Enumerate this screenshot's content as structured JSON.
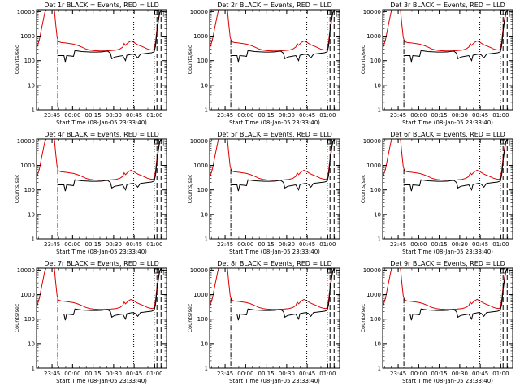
{
  "figure": {
    "black_color": "#000000",
    "red_color": "#e00000",
    "ticks_x": [
      "23:45",
      "00:00",
      "00:15",
      "00:30",
      "00:45",
      "01:00"
    ],
    "ticks_y": [
      "1",
      "10",
      "100",
      "1000",
      "10000"
    ],
    "corner_label": "|"
  },
  "chart_data": [
    {
      "type": "line",
      "title": "Det 1r BLACK = Events, RED = LLD",
      "xlabel": "Start Time (08-Jan-05 23:33:40)",
      "ylabel": "Counts/sec",
      "scale_y": "log",
      "ylim": [
        1,
        12000
      ],
      "xlim_min": [
        0,
        95
      ],
      "series": [
        {
          "name": "Events",
          "color": "#000000"
        },
        {
          "name": "LLD",
          "color": "#e00000"
        }
      ],
      "annotations": {
        "dashdot_min": 15.5,
        "dotted_min": [
          71,
          86
        ],
        "dashed_min": [
          88,
          91
        ]
      }
    },
    {
      "type": "line",
      "title": "Det 2r BLACK = Events, RED = LLD",
      "xlabel": "Start Time (08-Jan-05 23:33:40)",
      "ylabel": "Counts/sec",
      "scale_y": "log",
      "ylim": [
        1,
        12000
      ],
      "xlim_min": [
        0,
        95
      ],
      "series": [
        {
          "name": "Events",
          "color": "#000000"
        },
        {
          "name": "LLD",
          "color": "#e00000"
        }
      ],
      "annotations": {
        "dashdot_min": 15.5,
        "dotted_min": [
          71,
          86
        ],
        "dashed_min": [
          88,
          91
        ]
      }
    },
    {
      "type": "line",
      "title": "Det 3r BLACK = Events, RED = LLD",
      "xlabel": "Start Time (08-Jan-05 23:33:40)",
      "ylabel": "Counts/sec",
      "scale_y": "log",
      "ylim": [
        1,
        12000
      ],
      "xlim_min": [
        0,
        95
      ],
      "series": [
        {
          "name": "Events",
          "color": "#000000"
        },
        {
          "name": "LLD",
          "color": "#e00000"
        }
      ],
      "annotations": {
        "dashdot_min": 15.5,
        "dotted_min": [
          71,
          86
        ],
        "dashed_min": [
          88,
          91
        ]
      }
    },
    {
      "type": "line",
      "title": "Det 4r BLACK = Events, RED = LLD",
      "xlabel": "Start Time (08-Jan-05 23:33:40)",
      "ylabel": "Counts/sec",
      "scale_y": "log",
      "ylim": [
        1,
        12000
      ],
      "xlim_min": [
        0,
        95
      ],
      "series": [
        {
          "name": "Events",
          "color": "#000000"
        },
        {
          "name": "LLD",
          "color": "#e00000"
        }
      ],
      "annotations": {
        "dashdot_min": 15.5,
        "dotted_min": [
          71,
          86
        ],
        "dashed_min": [
          88,
          91
        ]
      }
    },
    {
      "type": "line",
      "title": "Det 5r BLACK = Events, RED = LLD",
      "xlabel": "Start Time (08-Jan-05 23:33:40)",
      "ylabel": "Counts/sec",
      "scale_y": "log",
      "ylim": [
        1,
        12000
      ],
      "xlim_min": [
        0,
        95
      ],
      "series": [
        {
          "name": "Events",
          "color": "#000000"
        },
        {
          "name": "LLD",
          "color": "#e00000"
        }
      ],
      "annotations": {
        "dashdot_min": 15.5,
        "dotted_min": [
          71,
          86
        ],
        "dashed_min": [
          88,
          91
        ]
      }
    },
    {
      "type": "line",
      "title": "Det 6r BLACK = Events, RED = LLD",
      "xlabel": "Start Time (08-Jan-05 23:33:40)",
      "ylabel": "Counts/sec",
      "scale_y": "log",
      "ylim": [
        1,
        12000
      ],
      "xlim_min": [
        0,
        95
      ],
      "series": [
        {
          "name": "Events",
          "color": "#000000"
        },
        {
          "name": "LLD",
          "color": "#e00000"
        }
      ],
      "annotations": {
        "dashdot_min": 15.5,
        "dotted_min": [
          71,
          86
        ],
        "dashed_min": [
          88,
          91
        ]
      }
    },
    {
      "type": "line",
      "title": "Det 7r BLACK = Events, RED = LLD",
      "xlabel": "Start Time (08-Jan-05 23:33:40)",
      "ylabel": "Counts/sec",
      "scale_y": "log",
      "ylim": [
        1,
        12000
      ],
      "xlim_min": [
        0,
        95
      ],
      "series": [
        {
          "name": "Events",
          "color": "#000000"
        },
        {
          "name": "LLD",
          "color": "#e00000"
        }
      ],
      "annotations": {
        "dashdot_min": 15.5,
        "dotted_min": [
          71,
          86
        ],
        "dashed_min": [
          88,
          91
        ]
      }
    },
    {
      "type": "line",
      "title": "Det 8r BLACK = Events, RED = LLD",
      "xlabel": "Start Time (08-Jan-05 23:33:40)",
      "ylabel": "Counts/sec",
      "scale_y": "log",
      "ylim": [
        1,
        12000
      ],
      "xlim_min": [
        0,
        95
      ],
      "series": [
        {
          "name": "Events",
          "color": "#000000"
        },
        {
          "name": "LLD",
          "color": "#e00000"
        }
      ],
      "annotations": {
        "dashdot_min": 15.5,
        "dotted_min": [
          71,
          86
        ],
        "dashed_min": [
          88,
          91
        ]
      }
    },
    {
      "type": "line",
      "title": "Det 9r BLACK = Events, RED = LLD",
      "xlabel": "Start Time (08-Jan-05 23:33:40)",
      "ylabel": "Counts/sec",
      "scale_y": "log",
      "ylim": [
        1,
        12000
      ],
      "xlim_min": [
        0,
        95
      ],
      "series": [
        {
          "name": "Events",
          "color": "#000000"
        },
        {
          "name": "LLD",
          "color": "#e00000"
        }
      ],
      "annotations": {
        "dashdot_min": 15.5,
        "dotted_min": [
          71,
          86
        ],
        "dashed_min": [
          88,
          91
        ]
      }
    }
  ]
}
